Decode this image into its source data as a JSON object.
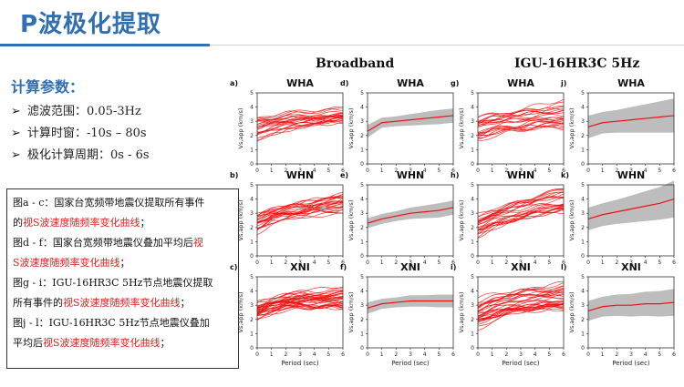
{
  "slide": {
    "title": "P波极化提取"
  },
  "params": {
    "heading": "计算参数：",
    "items": [
      {
        "label": "滤波范围：0.05-3Hz"
      },
      {
        "label": "计算时窗：-10s – 80s"
      },
      {
        "label": "极化计算周期：0s - 6s"
      }
    ],
    "bullet_icon": "arrow-right-icon"
  },
  "caption": {
    "l1a": "图a - c：国家台宽频带地震仪提取所有事件",
    "l2a": "的",
    "l2b": "视S波速度随频率变化曲线",
    "l2c": "；",
    "l3a": "图d - f：国家台宽频带地震仪叠加平均后",
    "l3b": "视",
    "l4a": "S波速度随频率变化曲线",
    "l4b": "；",
    "l5a": "图g - i：IGU-16HR3C 5Hz节点地震仪提取",
    "l6a": "所有事件的",
    "l6b": "视S波速度随频率变化曲线",
    "l6c": "；",
    "l7a": "图j - l：IGU-16HR3C 5Hz节点地震仪叠加",
    "l8a": "平均后",
    "l8b": "视S波速度随频率变化曲线",
    "l8c": "；"
  },
  "figure": {
    "group_left": "Broadband",
    "group_right": "IGU-16HR3C 5Hz",
    "ylabel": "Vs,app (km/s)",
    "xlabel": "Period (sec)",
    "x_ticks": [
      "0",
      "1",
      "2",
      "3",
      "4",
      "5",
      "6"
    ],
    "y_ticks": [
      "0",
      "1",
      "2",
      "3",
      "4",
      "5"
    ],
    "colors": {
      "individual": "#ee1111",
      "mean": "#ee1111",
      "band": "#bdbdbd",
      "axis": "#333333"
    }
  },
  "chart_data": [
    {
      "type": "line",
      "label": "a)",
      "title": "WHA",
      "kind": "individual",
      "xlim": [
        0,
        6
      ],
      "ylim": [
        0,
        5
      ],
      "count": 24,
      "mean": [
        2.5,
        2.8,
        3.0,
        3.1,
        3.2,
        3.3,
        3.4
      ],
      "spread": 0.6
    },
    {
      "type": "area",
      "label": "d)",
      "title": "WHA",
      "kind": "mean",
      "xlim": [
        0,
        6
      ],
      "ylim": [
        0,
        5
      ],
      "mean": [
        2.3,
        2.9,
        3.0,
        3.1,
        3.2,
        3.3,
        3.4
      ],
      "band": [
        0.45,
        0.35,
        0.35,
        0.4,
        0.45,
        0.5,
        0.5
      ]
    },
    {
      "type": "line",
      "label": "g)",
      "title": "WHA",
      "kind": "individual",
      "xlim": [
        0,
        6
      ],
      "ylim": [
        0,
        5
      ],
      "count": 24,
      "mean": [
        2.5,
        2.8,
        3.0,
        3.1,
        3.3,
        3.4,
        3.5
      ],
      "spread": 0.75
    },
    {
      "type": "area",
      "label": "j)",
      "title": "WHA",
      "kind": "mean",
      "xlim": [
        0,
        6
      ],
      "ylim": [
        0,
        5
      ],
      "mean": [
        2.6,
        2.9,
        3.0,
        3.1,
        3.2,
        3.3,
        3.4
      ],
      "band": [
        0.8,
        0.75,
        0.8,
        0.9,
        1.0,
        1.1,
        1.2
      ]
    },
    {
      "type": "line",
      "label": "b)",
      "title": "WHN",
      "kind": "individual",
      "xlim": [
        0,
        6
      ],
      "ylim": [
        0,
        5
      ],
      "count": 26,
      "mean": [
        2.3,
        2.8,
        3.0,
        3.2,
        3.4,
        3.5,
        3.7
      ],
      "spread": 0.55
    },
    {
      "type": "area",
      "label": "e)",
      "title": "WHN",
      "kind": "mean",
      "xlim": [
        0,
        6
      ],
      "ylim": [
        0,
        5
      ],
      "mean": [
        2.3,
        2.6,
        2.8,
        3.0,
        3.1,
        3.2,
        3.4
      ],
      "band": [
        0.35,
        0.35,
        0.35,
        0.4,
        0.45,
        0.5,
        0.5
      ]
    },
    {
      "type": "line",
      "label": "h)",
      "title": "WHN",
      "kind": "individual",
      "xlim": [
        0,
        6
      ],
      "ylim": [
        0,
        5
      ],
      "count": 26,
      "mean": [
        2.1,
        2.6,
        2.9,
        3.2,
        3.5,
        3.7,
        3.9
      ],
      "spread": 0.7
    },
    {
      "type": "area",
      "label": "k)",
      "title": "WHN",
      "kind": "mean",
      "xlim": [
        0,
        6
      ],
      "ylim": [
        0,
        5
      ],
      "mean": [
        2.6,
        2.9,
        3.1,
        3.3,
        3.5,
        3.7,
        4.0
      ],
      "band": [
        0.8,
        0.8,
        0.85,
        0.95,
        1.05,
        1.15,
        1.3
      ]
    },
    {
      "type": "line",
      "label": "c)",
      "title": "XNI",
      "kind": "individual",
      "xlim": [
        0,
        6
      ],
      "ylim": [
        0,
        5
      ],
      "count": 34,
      "mean": [
        2.6,
        3.0,
        3.3,
        3.4,
        3.4,
        3.5,
        3.5
      ],
      "spread": 0.6
    },
    {
      "type": "area",
      "label": "f)",
      "title": "XNI",
      "kind": "mean",
      "xlim": [
        0,
        6
      ],
      "ylim": [
        0,
        5
      ],
      "mean": [
        2.8,
        3.1,
        3.2,
        3.3,
        3.3,
        3.3,
        3.3
      ],
      "band": [
        0.4,
        0.35,
        0.35,
        0.4,
        0.4,
        0.45,
        0.45
      ]
    },
    {
      "type": "line",
      "label": "i)",
      "title": "XNI",
      "kind": "individual",
      "xlim": [
        0,
        6
      ],
      "ylim": [
        0,
        5
      ],
      "count": 34,
      "mean": [
        2.4,
        2.8,
        3.1,
        3.3,
        3.4,
        3.5,
        3.6
      ],
      "spread": 0.75
    },
    {
      "type": "area",
      "label": "l)",
      "title": "XNI",
      "kind": "mean",
      "xlim": [
        0,
        6
      ],
      "ylim": [
        0,
        5
      ],
      "mean": [
        2.6,
        2.9,
        3.0,
        3.0,
        3.1,
        3.1,
        3.2
      ],
      "band": [
        0.7,
        0.7,
        0.75,
        0.8,
        0.85,
        0.9,
        0.95
      ]
    }
  ]
}
